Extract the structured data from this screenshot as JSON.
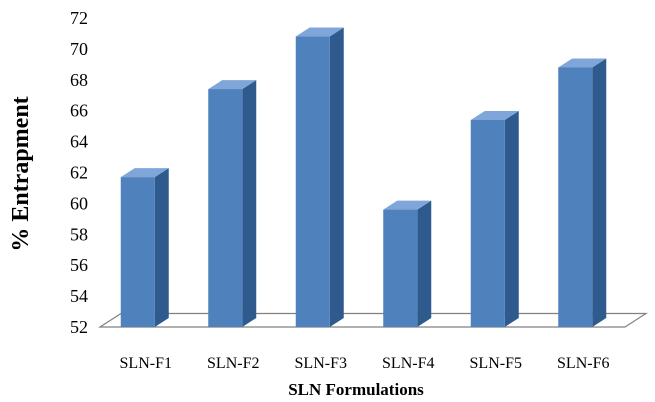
{
  "chart_data": {
    "type": "bar",
    "style": "3d-column",
    "categories": [
      "SLN-F1",
      "SLN-F2",
      "SLN-F3",
      "SLN-F4",
      "SLN-F5",
      "SLN-F6"
    ],
    "values": [
      61.7,
      67.4,
      70.8,
      59.6,
      65.4,
      68.8
    ],
    "xlabel": "SLN Formulations",
    "ylabel": "% Entrapment",
    "ylim": [
      52,
      72
    ],
    "yticks": [
      52,
      54,
      56,
      58,
      60,
      62,
      64,
      66,
      68,
      70,
      72
    ],
    "grid": false,
    "legend": "none",
    "colors": {
      "bar_front": "#4F81BD",
      "bar_side": "#2E5A8E",
      "bar_top": "#7FA6D8",
      "floor": "#FFFFFF",
      "floor_edge": "#808080"
    }
  }
}
